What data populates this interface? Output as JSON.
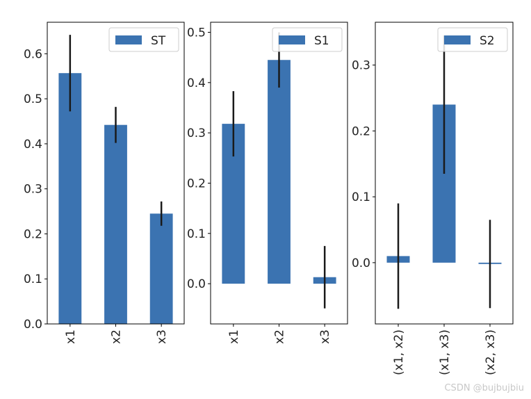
{
  "watermark": "CSDN @bujbujbiu",
  "colors": {
    "bar": "#3b73b1",
    "error": "#1a1a1a",
    "axis": "#000000"
  },
  "chart_data": [
    {
      "type": "bar",
      "legend": "ST",
      "legend_position": "top-right",
      "categories": [
        "x1",
        "x2",
        "x3"
      ],
      "values": [
        0.557,
        0.442,
        0.245
      ],
      "errors": [
        0.085,
        0.04,
        0.027
      ],
      "ylim": [
        0,
        0.67
      ],
      "yticks": [
        0.0,
        0.1,
        0.2,
        0.3,
        0.4,
        0.5,
        0.6
      ],
      "ytick_labels": [
        "0.0",
        "0.1",
        "0.2",
        "0.3",
        "0.4",
        "0.5",
        "0.6"
      ],
      "grid": false
    },
    {
      "type": "bar",
      "legend": "S1",
      "legend_position": "top-right",
      "categories": [
        "x1",
        "x2",
        "x3"
      ],
      "values": [
        0.318,
        0.445,
        0.013
      ],
      "errors": [
        0.065,
        0.055,
        0.062
      ],
      "ylim": [
        -0.08,
        0.52
      ],
      "yticks": [
        0.0,
        0.1,
        0.2,
        0.3,
        0.4,
        0.5
      ],
      "ytick_labels": [
        "0.0",
        "0.1",
        "0.2",
        "0.3",
        "0.4",
        "0.5"
      ],
      "grid": false
    },
    {
      "type": "bar",
      "legend": "S2",
      "legend_position": "top-right",
      "categories": [
        "(x1, x2)",
        "(x1, x3)",
        "(x2, x3)"
      ],
      "values": [
        0.01,
        0.24,
        -0.002
      ],
      "errors": [
        0.08,
        0.105,
        0.067
      ],
      "ylim": [
        -0.093,
        0.365
      ],
      "yticks": [
        0.0,
        0.1,
        0.2,
        0.3
      ],
      "ytick_labels": [
        "0.0",
        "0.1",
        "0.2",
        "0.3"
      ],
      "grid": false
    }
  ]
}
